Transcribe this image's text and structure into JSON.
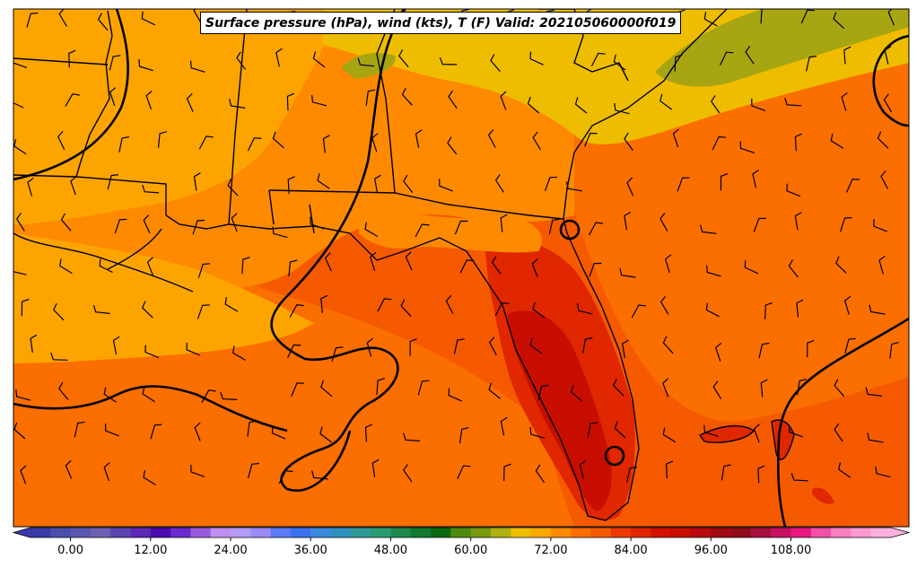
{
  "title": "Surface pressure (hPa), wind (kts), T (F) Valid: 202105060000f019",
  "colors": {
    "gulf_warm": "#f55a00",
    "gulf_mid": "#fb6e00",
    "land_orange": "#fd8a00",
    "land_light_orange": "#fda400",
    "north_yellow": "#eebd00",
    "olive": "#a7a512",
    "peninsula_dark_red": "#c80e00",
    "peninsula_red": "#e02700",
    "boundary_line": "#000000",
    "isobar_line": "#000000"
  },
  "colorbar": {
    "ticks": [
      "0.00",
      "12.00",
      "24.00",
      "36.00",
      "48.00",
      "60.00",
      "72.00",
      "84.00",
      "96.00",
      "108.00"
    ],
    "min": -6,
    "max": 123,
    "step": 3,
    "colors": [
      "#3a3aa8",
      "#4a4fae",
      "#5858b0",
      "#6e5fb5",
      "#5944b0",
      "#5a2ab5",
      "#4d0ab0",
      "#6a2ad0",
      "#9a5ae0",
      "#c090f0",
      "#b49af8",
      "#9a8af8",
      "#5a7af8",
      "#3a72f0",
      "#3a8ae0",
      "#3090c0",
      "#2e9a98",
      "#2a9a70",
      "#1e8a50",
      "#107a30",
      "#0a6a10",
      "#4e8a10",
      "#7a9a10",
      "#b0b010",
      "#eebd00",
      "#f8a800",
      "#fd8a00",
      "#fb6e00",
      "#f55a00",
      "#ec3a00",
      "#e02700",
      "#d41000",
      "#c80e00",
      "#b80a10",
      "#a00a10",
      "#900c18",
      "#a81040",
      "#c81060",
      "#e81880",
      "#f050a8",
      "#f880c0",
      "#fa9ad0",
      "#fcb0dc"
    ]
  }
}
